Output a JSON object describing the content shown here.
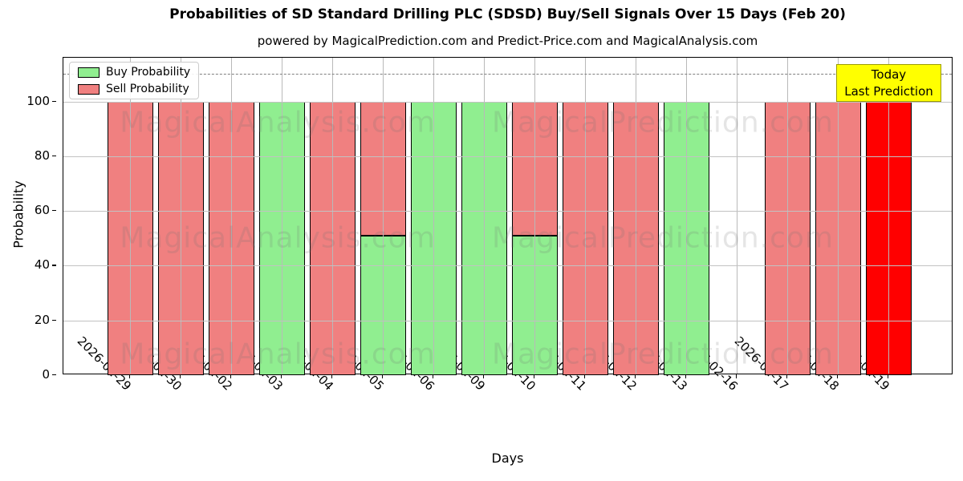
{
  "chart_data": {
    "type": "bar",
    "stacked": true,
    "title": "Probabilities of SD Standard Drilling PLC (SDSD) Buy/Sell Signals Over 15 Days (Feb 20)",
    "subtitle": "powered by MagicalPrediction.com and Predict-Price.com and MagicalAnalysis.com",
    "xlabel": "Days",
    "ylabel": "Probability",
    "ylim": [
      0,
      116
    ],
    "yticks": [
      0,
      20,
      40,
      60,
      80,
      100
    ],
    "grid": true,
    "legend_position": "upper-left",
    "categories": [
      "2026-01-29",
      "2026-01-30",
      "2026-02-02",
      "2026-02-03",
      "2026-02-04",
      "2026-02-05",
      "2026-02-06",
      "2026-02-09",
      "2026-02-10",
      "2026-02-11",
      "2026-02-12",
      "2026-02-13",
      "2026-02-16",
      "2026-02-17",
      "2026-02-18",
      "2026-02-19"
    ],
    "series": [
      {
        "name": "Buy Probability",
        "color": "#90ee90",
        "values": [
          0,
          0,
          0,
          100,
          0,
          51,
          100,
          100,
          51,
          0,
          0,
          100,
          0,
          0,
          0,
          0
        ]
      },
      {
        "name": "Sell Probability",
        "color": "#f08080",
        "values": [
          100,
          100,
          100,
          0,
          100,
          49,
          0,
          0,
          49,
          100,
          100,
          0,
          0,
          100,
          100,
          100
        ]
      }
    ],
    "bar_edge_color": "#000000",
    "highlight_bar": {
      "category": "2026-02-19",
      "index": 15,
      "color": "#ff0000"
    },
    "dashed_line": {
      "y": 110,
      "color": "#7f7f7f",
      "style": "dashed"
    },
    "legend": {
      "items": [
        {
          "label": "Buy Probability",
          "color": "#90ee90"
        },
        {
          "label": "Sell Probability",
          "color": "#f08080"
        }
      ]
    },
    "annotation_box": {
      "lines": [
        "Today",
        "Last Prediction"
      ],
      "bg_color": "#ffff00",
      "border_color": "#9c9c00",
      "anchor_category": "2026-02-19"
    },
    "watermarks": {
      "left_text": "MagicalAnalysis.com",
      "right_text": "MagicalPrediction.com",
      "rows": 3
    }
  }
}
